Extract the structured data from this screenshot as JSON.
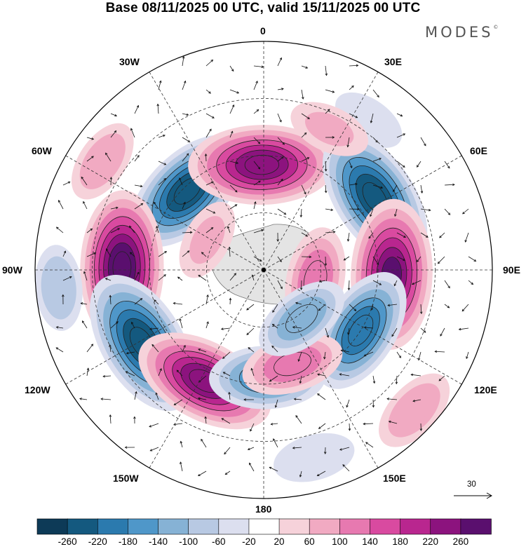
{
  "title": "Base 08/11/2025 00 UTC, valid 15/11/2025 00 UTC",
  "brand": {
    "text": "MODES",
    "mark": "©"
  },
  "longitude_labels": {
    "n0": "0",
    "n30e": "30E",
    "n60e": "60E",
    "e90": "90E",
    "n120e": "120E",
    "n150e": "150E",
    "s180": "180",
    "n150w": "150W",
    "n120w": "120W",
    "w90": "90W",
    "n60w": "60W",
    "n30w": "30W"
  },
  "reference_vector": {
    "value": "30",
    "icon": "arrow-right-icon"
  },
  "colorbar": {
    "ticks": [
      "-260",
      "-220",
      "-180",
      "-140",
      "-100",
      "-60",
      "-20",
      "20",
      "60",
      "100",
      "140",
      "180",
      "220",
      "260"
    ],
    "colors": [
      "#0d3a57",
      "#14597f",
      "#2b7aae",
      "#4f97c9",
      "#86b2d5",
      "#b8c9e3",
      "#dcdfef",
      "#ffffff",
      "#f6d2da",
      "#f1aac2",
      "#e779b0",
      "#d94aa0",
      "#b9268f",
      "#8c137e",
      "#5a0f6e"
    ]
  },
  "map": {
    "projection": "south-polar-stereographic",
    "anomaly_centers": [
      {
        "name": "blue-60w-trough",
        "value": -230,
        "lon": -44,
        "colat": 0.48
      },
      {
        "name": "pink-0-ridge",
        "value": 250,
        "lon": -1,
        "colat": 0.46
      },
      {
        "name": "blue-60e-trough",
        "value": -250,
        "lon": 57,
        "colat": 0.58
      },
      {
        "name": "pink-90e-ridge",
        "value": 260,
        "lon": 92,
        "colat": 0.56
      },
      {
        "name": "blue-120e-trough",
        "value": -200,
        "lon": 122,
        "colat": 0.5
      },
      {
        "name": "pink-90w-ridge",
        "value": 270,
        "lon": -89,
        "colat": 0.62
      },
      {
        "name": "blue-120w-trough",
        "value": -260,
        "lon": -121,
        "colat": 0.62
      },
      {
        "name": "pink-150w-ridge",
        "value": 240,
        "lon": -152,
        "colat": 0.55
      },
      {
        "name": "blue-175e-small",
        "value": -160,
        "lon": 178,
        "colat": 0.47
      },
      {
        "name": "pink-165e-small",
        "value": 120,
        "lon": 163,
        "colat": 0.43
      },
      {
        "name": "pink-110e-inner",
        "value": 130,
        "lon": 101,
        "colat": 0.23
      },
      {
        "name": "blue-120e-inner",
        "value": -110,
        "lon": 142,
        "colat": 0.27
      },
      {
        "name": "pink-45w-small",
        "value": 60,
        "lon": -62,
        "colat": 0.28
      },
      {
        "name": "pink-60w-outer",
        "value": 70,
        "lon": -56,
        "colat": 0.85
      },
      {
        "name": "blue-95w-outer",
        "value": -70,
        "lon": -95,
        "colat": 0.9
      },
      {
        "name": "pink-150e-outer",
        "value": 80,
        "lon": 133,
        "colat": 0.9
      },
      {
        "name": "blue-165e-outer",
        "value": -60,
        "lon": 165,
        "colat": 0.85
      },
      {
        "name": "blue-30e-outer",
        "value": -40,
        "lon": 35,
        "colat": 0.8
      },
      {
        "name": "pink-20e-outer",
        "value": 60,
        "lon": 25,
        "colat": 0.68
      }
    ]
  }
}
